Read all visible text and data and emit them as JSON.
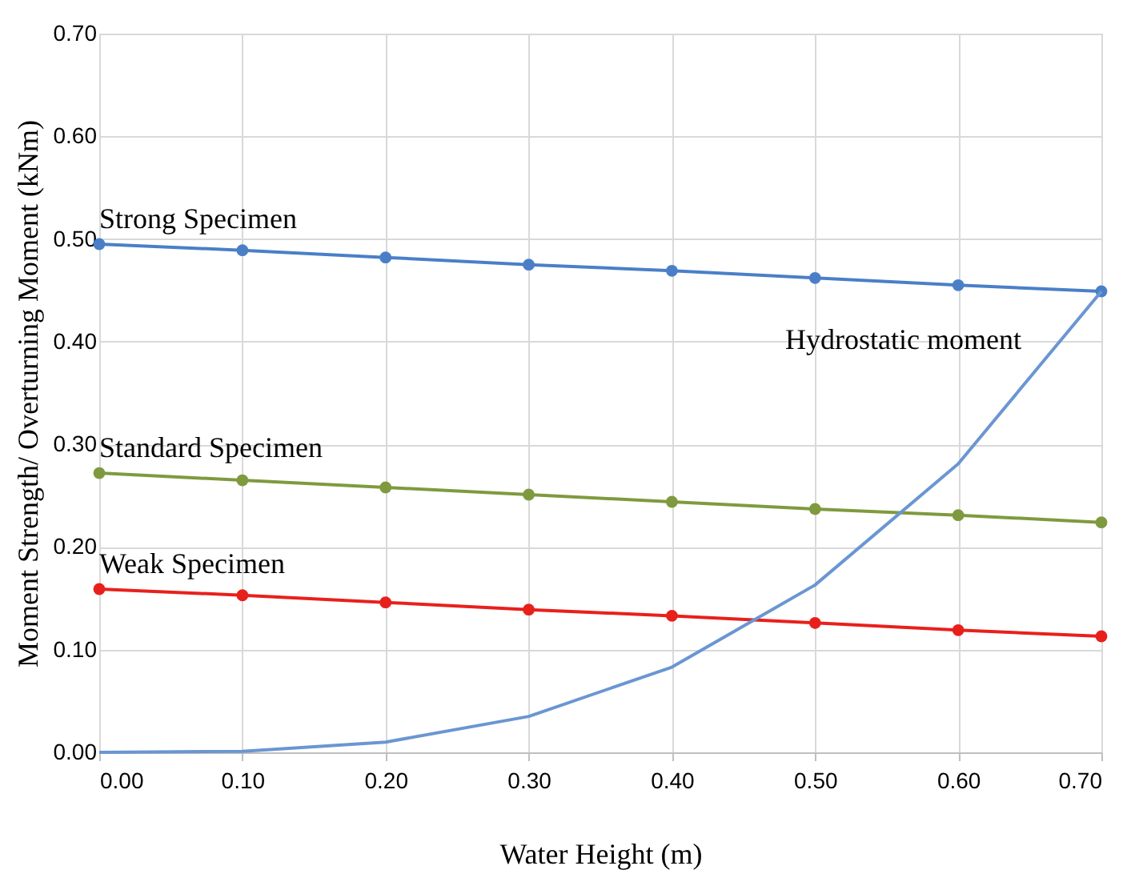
{
  "chart_data": {
    "type": "line",
    "xlabel": "Water Height (m)",
    "ylabel": "Moment Strength/ Overturning Moment (kNm)",
    "x": [
      0,
      0.1,
      0.2,
      0.3,
      0.4,
      0.5,
      0.6,
      0.7
    ],
    "series": [
      {
        "name": "Strong Specimen",
        "color": "#4a7fc8",
        "marker": "circle",
        "values": [
          0.495,
          0.489,
          0.482,
          0.475,
          0.469,
          0.462,
          0.455,
          0.449
        ]
      },
      {
        "name": "Standard Specimen",
        "color": "#7f9a3e",
        "marker": "circle",
        "values": [
          0.272,
          0.265,
          0.258,
          0.251,
          0.244,
          0.237,
          0.231,
          0.224
        ]
      },
      {
        "name": "Weak Specimen",
        "color": "#e8201c",
        "marker": "circle",
        "values": [
          0.159,
          0.153,
          0.146,
          0.139,
          0.133,
          0.126,
          0.119,
          0.113
        ]
      },
      {
        "name": "Hydrostatic moment",
        "color": "#6a96d2",
        "marker": "none",
        "values": [
          0,
          0.001,
          0.01,
          0.035,
          0.083,
          0.163,
          0.281,
          0.449
        ]
      }
    ],
    "xlim": [
      0,
      0.7
    ],
    "xticks": [
      {
        "value": 0,
        "label": "0.00"
      },
      {
        "value": 0.1,
        "label": "0.10"
      },
      {
        "value": 0.2,
        "label": "0.20"
      },
      {
        "value": 0.3,
        "label": "0.30"
      },
      {
        "value": 0.4,
        "label": "0.40"
      },
      {
        "value": 0.5,
        "label": "0.50"
      },
      {
        "value": 0.6,
        "label": "0.60"
      },
      {
        "value": 0.7,
        "label": "0.70"
      }
    ],
    "ylim": [
      0,
      0.7
    ],
    "yticks": [
      {
        "value": 0,
        "label": "0.00"
      },
      {
        "value": 0.1,
        "label": "0.10"
      },
      {
        "value": 0.2,
        "label": "0.20"
      },
      {
        "value": 0.3,
        "label": "0.30"
      },
      {
        "value": 0.4,
        "label": "0.40"
      },
      {
        "value": 0.5,
        "label": "0.50"
      },
      {
        "value": 0.6,
        "label": "0.60"
      },
      {
        "value": 0.7,
        "label": "0.70"
      }
    ],
    "grid": true,
    "line_style": "solid"
  }
}
